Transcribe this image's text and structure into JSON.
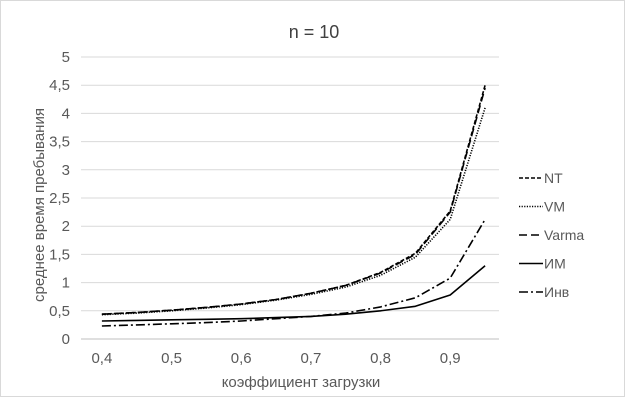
{
  "chart_data": {
    "type": "line",
    "title": "n = 10",
    "xlabel": "коэффициент загрузки",
    "ylabel": "среднее время пребывания",
    "x": [
      0.4,
      0.45,
      0.5,
      0.55,
      0.6,
      0.65,
      0.7,
      0.75,
      0.8,
      0.85,
      0.9,
      0.95
    ],
    "xlim": [
      0.37,
      0.97
    ],
    "xticks": [
      0.4,
      0.5,
      0.6,
      0.7,
      0.8,
      0.9
    ],
    "xtick_labels": [
      "0,4",
      "0,5",
      "0,6",
      "0,7",
      "0,8",
      "0,9"
    ],
    "ylim": [
      0,
      5
    ],
    "yticks": [
      0,
      0.5,
      1,
      1.5,
      2,
      2.5,
      3,
      3.5,
      4,
      4.5,
      5
    ],
    "ytick_labels": [
      "0",
      "0,5",
      "1",
      "1,5",
      "2",
      "2,5",
      "3",
      "3,5",
      "4",
      "4,5",
      "5"
    ],
    "grid": "horizontal",
    "legend_position": "right",
    "series": [
      {
        "name": "NT",
        "style": "short-dash",
        "color": "#000000",
        "values": [
          0.44,
          0.47,
          0.51,
          0.56,
          0.62,
          0.7,
          0.81,
          0.95,
          1.18,
          1.52,
          2.27,
          4.5
        ]
      },
      {
        "name": "VM",
        "style": "dotted",
        "color": "#000000",
        "values": [
          0.43,
          0.46,
          0.5,
          0.55,
          0.61,
          0.69,
          0.79,
          0.92,
          1.13,
          1.45,
          2.12,
          4.1
        ]
      },
      {
        "name": "Varma",
        "style": "dash",
        "color": "#000000",
        "values": [
          0.44,
          0.47,
          0.51,
          0.56,
          0.62,
          0.7,
          0.81,
          0.95,
          1.17,
          1.5,
          2.25,
          4.45
        ]
      },
      {
        "name": "ИМ",
        "style": "solid",
        "color": "#000000",
        "values": [
          0.32,
          0.33,
          0.34,
          0.35,
          0.36,
          0.38,
          0.4,
          0.44,
          0.5,
          0.58,
          0.78,
          1.3
        ]
      },
      {
        "name": "Инв",
        "style": "dash-dot",
        "color": "#000000",
        "values": [
          0.23,
          0.25,
          0.27,
          0.29,
          0.32,
          0.36,
          0.4,
          0.46,
          0.57,
          0.73,
          1.08,
          2.12
        ]
      }
    ]
  }
}
